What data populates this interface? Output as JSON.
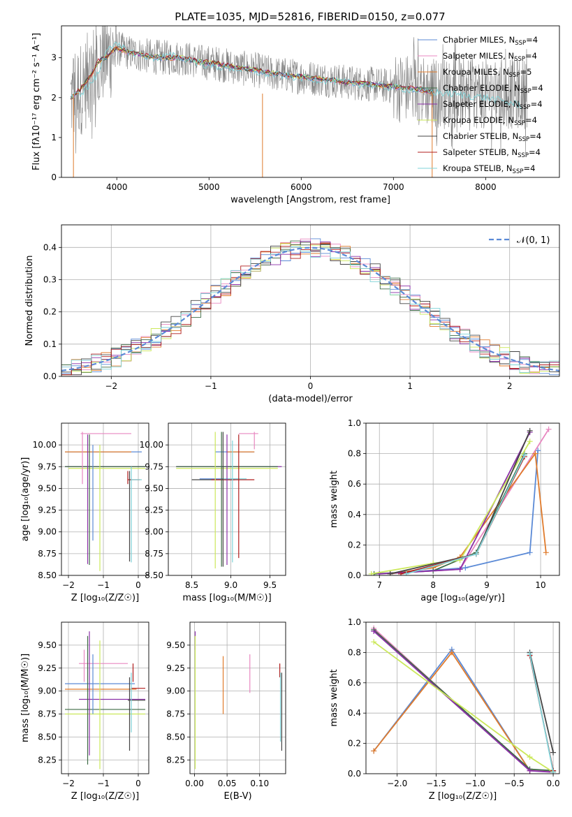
{
  "figure": {
    "title": "PLATE=1035, MJD=52816, FIBERID=0150, z=0.077"
  },
  "colors": {
    "chabrier_miles": "#5b8ad6",
    "salpeter_miles": "#e887c0",
    "kroupa_miles": "#e07b2c",
    "chabrier_elodie": "#3d6b45",
    "salpeter_elodie": "#8b2fa8",
    "kroupa_elodie": "#cbe85a",
    "chabrier_stelib": "#444444",
    "salpeter_stelib": "#b01c1c",
    "kroupa_stelib": "#7fd3d8",
    "data_grey": "#7f7f7f"
  },
  "chart_data": [
    {
      "id": "spectrum",
      "type": "line",
      "xlabel": "wavelength [Angstrom, rest frame]",
      "ylabel": "Flux [fλ10⁻¹⁷ erg cm⁻² s⁻¹ A⁻¹]",
      "xlim": [
        3400,
        8800
      ],
      "ylim": [
        0,
        3.8
      ],
      "xticks": [
        4000,
        5000,
        6000,
        7000,
        8000
      ],
      "yticks": [
        0,
        1,
        2,
        3
      ],
      "grid": false,
      "legend_position": "top-right",
      "legend": [
        {
          "label": "Chabrier MILES, N",
          "sub": "SSP",
          "suffix": "=4",
          "color": "chabrier_miles"
        },
        {
          "label": "Salpeter MILES, N",
          "sub": "SSP",
          "suffix": "=4",
          "color": "salpeter_miles"
        },
        {
          "label": "Kroupa MILES, N",
          "sub": "SSP",
          "suffix": "=5",
          "color": "kroupa_miles"
        },
        {
          "label": "Chabrier ELODIE, N",
          "sub": "SSP",
          "suffix": "=4",
          "color": "chabrier_elodie"
        },
        {
          "label": "Salpeter ELODIE, N",
          "sub": "SSP",
          "suffix": "=4",
          "color": "salpeter_elodie"
        },
        {
          "label": "Kroupa ELODIE, N",
          "sub": "SSP",
          "suffix": "=4",
          "color": "kroupa_elodie"
        },
        {
          "label": "Chabrier STELIB, N",
          "sub": "SSP",
          "suffix": "=4",
          "color": "chabrier_stelib"
        },
        {
          "label": "Salpeter STELIB, N",
          "sub": "SSP",
          "suffix": "=4",
          "color": "salpeter_stelib"
        },
        {
          "label": "Kroupa STELIB, N",
          "sub": "SSP",
          "suffix": "=4",
          "color": "kroupa_stelib"
        }
      ],
      "model_curve": {
        "x": [
          3500,
          3600,
          3700,
          3800,
          3900,
          4000,
          4100,
          4300,
          4500,
          4700,
          4900,
          5100,
          5300,
          5500,
          5700,
          5900,
          6100,
          6300,
          6500,
          6700,
          6900,
          7100,
          7300,
          7500
        ],
        "y": [
          2.0,
          2.2,
          2.5,
          2.9,
          3.05,
          3.25,
          3.15,
          3.05,
          3.0,
          3.0,
          2.9,
          2.85,
          2.75,
          2.7,
          2.6,
          2.55,
          2.5,
          2.45,
          2.38,
          2.35,
          2.3,
          2.25,
          2.2,
          2.1
        ]
      },
      "kroupa_stelib_curve": {
        "x": [
          3500,
          3600,
          3700,
          3800,
          3900,
          4000,
          4200,
          4400,
          4600,
          4800,
          5000,
          5200,
          5400,
          5600,
          5800,
          6000,
          6200,
          6400,
          6600,
          6800,
          7000,
          7200,
          7400,
          7600,
          7800,
          8000,
          8200,
          8400
        ],
        "y": [
          2.0,
          2.1,
          2.3,
          2.6,
          3.3,
          3.3,
          3.1,
          3.0,
          3.05,
          2.95,
          2.8,
          2.75,
          2.7,
          2.6,
          2.55,
          2.5,
          2.45,
          2.4,
          2.35,
          2.3,
          2.25,
          2.2,
          2.15,
          2.1,
          2.05,
          2.0,
          1.9,
          1.8
        ]
      },
      "data_x_range": [
        3500,
        8450
      ]
    },
    {
      "id": "residuals",
      "type": "step",
      "xlabel": "(data-model)/error",
      "ylabel": "Normed distribution",
      "xlim": [
        -2.5,
        2.5
      ],
      "ylim": [
        0,
        0.47
      ],
      "xticks": [
        -2,
        -1,
        0,
        1,
        2
      ],
      "yticks": [
        0.0,
        0.1,
        0.2,
        0.3,
        0.4
      ],
      "grid": true,
      "legend_position": "top-right",
      "legend": [
        {
          "label": "𝒩(0, 1)",
          "color": "#5b8ad6",
          "style": "dashed"
        }
      ],
      "normal": {
        "mean": 0,
        "sigma": 1
      }
    },
    {
      "id": "age_vs_Z",
      "type": "errorbar",
      "xlabel": "Z [log₁₀(Z/Z☉)]",
      "ylabel": "age  [log₁₀(age/yr)]",
      "xlim": [
        -2.2,
        0.3
      ],
      "ylim": [
        8.5,
        10.25
      ],
      "xticks": [
        -2,
        -1,
        0
      ],
      "yticks": [
        8.5,
        8.75,
        9.0,
        9.25,
        9.5,
        9.75,
        10.0
      ],
      "grid": true,
      "hbars": [
        {
          "y": 10.13,
          "x0": -1.65,
          "x1": -0.2,
          "c": "salpeter_miles"
        },
        {
          "y": 9.92,
          "x0": -2.1,
          "x1": 0.1,
          "c": "chabrier_miles"
        },
        {
          "y": 9.92,
          "x0": -2.1,
          "x1": -0.2,
          "c": "kroupa_miles"
        },
        {
          "y": 9.75,
          "x0": -2.1,
          "x1": 0.2,
          "c": "salpeter_elodie"
        },
        {
          "y": 9.75,
          "x0": -2.1,
          "x1": 0.2,
          "c": "chabrier_elodie"
        },
        {
          "y": 9.73,
          "x0": -2.0,
          "x1": 0.2,
          "c": "kroupa_elodie"
        },
        {
          "y": 9.6,
          "x0": -0.3,
          "x1": 0.05,
          "c": "salpeter_stelib"
        },
        {
          "y": 9.6,
          "x0": -0.2,
          "x1": 0.1,
          "c": "kroupa_stelib"
        }
      ],
      "vbars": [
        {
          "x": -1.6,
          "y0": 9.55,
          "y1": 10.15,
          "c": "salpeter_miles"
        },
        {
          "x": -1.45,
          "y0": 8.63,
          "y1": 10.12,
          "c": "salpeter_elodie"
        },
        {
          "x": -1.4,
          "y0": 8.62,
          "y1": 10.12,
          "c": "chabrier_elodie"
        },
        {
          "x": -1.1,
          "y0": 8.55,
          "y1": 10.0,
          "c": "kroupa_elodie"
        },
        {
          "x": -1.3,
          "y0": 8.9,
          "y1": 10.0,
          "c": "chabrier_miles"
        },
        {
          "x": -0.25,
          "y0": 8.66,
          "y1": 9.7,
          "c": "chabrier_stelib"
        },
        {
          "x": -0.2,
          "y0": 8.65,
          "y1": 9.75,
          "c": "kroupa_stelib"
        },
        {
          "x": -0.3,
          "y0": 9.55,
          "y1": 9.7,
          "c": "salpeter_stelib"
        }
      ]
    },
    {
      "id": "age_vs_mass",
      "type": "errorbar",
      "xlabel": "mass [log₁₀(M/M☉)]",
      "ylabel": "",
      "xlim": [
        8.2,
        9.7
      ],
      "ylim": [
        8.5,
        10.25
      ],
      "xticks": [
        8.5,
        9.0,
        9.5
      ],
      "yticks": [
        8.5,
        8.75,
        9.0,
        9.25,
        9.5,
        9.75,
        10.0
      ],
      "grid": true,
      "hbars": [
        {
          "y": 10.13,
          "x0": 9.1,
          "x1": 9.35,
          "c": "salpeter_miles"
        },
        {
          "y": 9.92,
          "x0": 8.8,
          "x1": 9.3,
          "c": "chabrier_miles"
        },
        {
          "y": 9.92,
          "x0": 8.95,
          "x1": 9.3,
          "c": "kroupa_miles"
        },
        {
          "y": 9.75,
          "x0": 8.3,
          "x1": 9.65,
          "c": "salpeter_elodie"
        },
        {
          "y": 9.75,
          "x0": 8.3,
          "x1": 9.6,
          "c": "chabrier_elodie"
        },
        {
          "y": 9.73,
          "x0": 8.3,
          "x1": 9.6,
          "c": "kroupa_elodie"
        },
        {
          "y": 9.61,
          "x0": 8.6,
          "x1": 9.1,
          "c": "chabrier_miles"
        },
        {
          "y": 9.6,
          "x0": 8.5,
          "x1": 9.05,
          "c": "chabrier_stelib"
        },
        {
          "y": 9.6,
          "x0": 8.75,
          "x1": 9.3,
          "c": "salpeter_stelib"
        },
        {
          "y": 9.61,
          "x0": 8.9,
          "x1": 9.2,
          "c": "kroupa_stelib"
        }
      ],
      "vbars": [
        {
          "x": 8.8,
          "y0": 8.58,
          "y1": 10.15,
          "c": "kroupa_elodie"
        },
        {
          "x": 8.88,
          "y0": 8.6,
          "y1": 10.15,
          "c": "chabrier_elodie"
        },
        {
          "x": 8.9,
          "y0": 8.6,
          "y1": 10.15,
          "c": "chabrier_stelib"
        },
        {
          "x": 8.95,
          "y0": 8.62,
          "y1": 10.12,
          "c": "salpeter_elodie"
        },
        {
          "x": 9.02,
          "y0": 8.65,
          "y1": 10.05,
          "c": "kroupa_stelib"
        },
        {
          "x": 9.1,
          "y0": 8.7,
          "y1": 10.12,
          "c": "salpeter_stelib"
        },
        {
          "x": 9.3,
          "y0": 9.95,
          "y1": 10.15,
          "c": "salpeter_miles"
        }
      ]
    },
    {
      "id": "weight_vs_age",
      "type": "line",
      "xlabel": "age  [log₁₀(age/yr)]",
      "ylabel": "mass weight",
      "xlim": [
        6.75,
        10.35
      ],
      "ylim": [
        0,
        1.0
      ],
      "xticks": [
        7,
        8,
        9,
        10
      ],
      "yticks": [
        0.0,
        0.2,
        0.4,
        0.6,
        0.8,
        1.0
      ],
      "grid": true,
      "series": [
        {
          "c": "chabrier_miles",
          "x": [
            7.5,
            8.6,
            9.8,
            9.95
          ],
          "y": [
            0.02,
            0.05,
            0.15,
            0.82
          ]
        },
        {
          "c": "salpeter_miles",
          "x": [
            7.5,
            8.5,
            10.15
          ],
          "y": [
            0.02,
            0.04,
            0.96
          ]
        },
        {
          "c": "kroupa_miles",
          "x": [
            7.2,
            8.0,
            8.5,
            9.9,
            10.1
          ],
          "y": [
            0.01,
            0.05,
            0.12,
            0.8,
            0.15
          ]
        },
        {
          "c": "chabrier_elodie",
          "x": [
            6.9,
            8.0,
            8.8,
            9.7
          ],
          "y": [
            0.01,
            0.03,
            0.15,
            0.8
          ]
        },
        {
          "c": "salpeter_elodie",
          "x": [
            7.0,
            8.5,
            9.8
          ],
          "y": [
            0.01,
            0.04,
            0.94
          ]
        },
        {
          "c": "kroupa_elodie",
          "x": [
            6.85,
            8.0,
            8.5,
            9.8
          ],
          "y": [
            0.01,
            0.08,
            0.1,
            0.88
          ]
        },
        {
          "c": "chabrier_stelib",
          "x": [
            7.2,
            8.8,
            9.8
          ],
          "y": [
            0.01,
            0.14,
            0.95
          ]
        },
        {
          "c": "salpeter_stelib",
          "x": [
            7.4,
            8.8,
            9.7
          ],
          "y": [
            0.01,
            0.14,
            0.78
          ]
        },
        {
          "c": "kroupa_stelib",
          "x": [
            7.5,
            8.8,
            9.7
          ],
          "y": [
            0.01,
            0.14,
            0.79
          ]
        }
      ]
    },
    {
      "id": "mass_vs_Z",
      "type": "errorbar",
      "xlabel": "Z [log₁₀(Z/Z☉)]",
      "ylabel": "mass [log₁₀(M/M☉)]",
      "xlim": [
        -2.2,
        0.3
      ],
      "ylim": [
        8.1,
        9.75
      ],
      "xticks": [
        -2,
        -1,
        0
      ],
      "yticks": [
        8.25,
        8.5,
        8.75,
        9.0,
        9.25,
        9.5
      ],
      "grid": true,
      "hbars": [
        {
          "y": 9.3,
          "x0": -1.7,
          "x1": -0.3,
          "c": "salpeter_miles"
        },
        {
          "y": 9.08,
          "x0": -2.1,
          "x1": -0.1,
          "c": "chabrier_miles"
        },
        {
          "y": 9.02,
          "x0": -2.1,
          "x1": -0.05,
          "c": "kroupa_miles"
        },
        {
          "y": 9.03,
          "x0": -0.2,
          "x1": 0.2,
          "c": "salpeter_stelib"
        },
        {
          "y": 8.91,
          "x0": -1.7,
          "x1": 0.2,
          "c": "salpeter_elodie"
        },
        {
          "y": 8.9,
          "x0": -0.3,
          "x1": 0.2,
          "c": "chabrier_stelib"
        },
        {
          "y": 8.8,
          "x0": -2.1,
          "x1": 0.2,
          "c": "chabrier_elodie"
        },
        {
          "y": 8.75,
          "x0": -2.1,
          "x1": 0.2,
          "c": "kroupa_elodie"
        }
      ],
      "vbars": [
        {
          "x": -1.45,
          "y0": 8.2,
          "y1": 9.6,
          "c": "chabrier_elodie"
        },
        {
          "x": -1.4,
          "y0": 8.3,
          "y1": 9.65,
          "c": "salpeter_elodie"
        },
        {
          "x": -1.3,
          "y0": 8.75,
          "y1": 9.4,
          "c": "chabrier_miles"
        },
        {
          "x": -1.55,
          "y0": 9.1,
          "y1": 9.45,
          "c": "salpeter_miles"
        },
        {
          "x": -1.1,
          "y0": 8.15,
          "y1": 9.55,
          "c": "kroupa_elodie"
        },
        {
          "x": -0.25,
          "y0": 8.35,
          "y1": 9.15,
          "c": "chabrier_stelib"
        },
        {
          "x": -0.2,
          "y0": 8.55,
          "y1": 9.2,
          "c": "kroupa_stelib"
        },
        {
          "x": -0.15,
          "y0": 9.1,
          "y1": 9.3,
          "c": "salpeter_stelib"
        }
      ]
    },
    {
      "id": "mass_vs_ebv",
      "type": "errorbar",
      "xlabel": "E(B-V)",
      "ylabel": "",
      "xlim": [
        -0.007,
        0.14
      ],
      "ylim": [
        8.1,
        9.75
      ],
      "xticks": [
        0.0,
        0.05,
        0.1
      ],
      "tick_labels": [
        "0.00",
        "0.05",
        "0.10"
      ],
      "yticks": [
        8.25,
        8.5,
        8.75,
        9.0,
        9.25,
        9.5
      ],
      "grid": true,
      "hbars": [],
      "vbars": [
        {
          "x": 0.001,
          "y0": 9.45,
          "y1": 9.65,
          "c": "salpeter_elodie"
        },
        {
          "x": 0.001,
          "y0": 8.15,
          "y1": 9.6,
          "c": "kroupa_elodie"
        },
        {
          "x": 0.044,
          "y0": 8.75,
          "y1": 9.38,
          "c": "kroupa_miles"
        },
        {
          "x": 0.085,
          "y0": 8.98,
          "y1": 9.4,
          "c": "salpeter_miles"
        },
        {
          "x": 0.131,
          "y0": 9.15,
          "y1": 9.3,
          "c": "salpeter_stelib"
        },
        {
          "x": 0.132,
          "y0": 8.45,
          "y1": 9.2,
          "c": "kroupa_stelib"
        },
        {
          "x": 0.134,
          "y0": 8.35,
          "y1": 9.2,
          "c": "chabrier_stelib"
        }
      ]
    },
    {
      "id": "weight_vs_Z",
      "type": "line",
      "xlabel": "Z [log₁₀(Z/Z☉)]",
      "ylabel": "mass weight",
      "xlim": [
        -2.4,
        0.08
      ],
      "ylim": [
        0,
        1.0
      ],
      "xticks": [
        -2.0,
        -1.5,
        -1.0,
        -0.5,
        0.0
      ],
      "tick_labels": [
        "−2.0",
        "−1.5",
        "−1.0",
        "−0.5",
        "0.0"
      ],
      "yticks": [
        0.0,
        0.2,
        0.4,
        0.6,
        0.8,
        1.0
      ],
      "grid": true,
      "series": [
        {
          "c": "chabrier_miles",
          "x": [
            -2.3,
            -1.3,
            -0.3,
            0.0
          ],
          "y": [
            0.15,
            0.82,
            0.02,
            0.02
          ]
        },
        {
          "c": "kroupa_miles",
          "x": [
            -2.3,
            -1.3,
            -0.3,
            0.0
          ],
          "y": [
            0.15,
            0.8,
            0.02,
            0.02
          ]
        },
        {
          "c": "salpeter_miles",
          "x": [
            -2.3,
            -0.3,
            0.0
          ],
          "y": [
            0.96,
            0.02,
            0.02
          ]
        },
        {
          "c": "chabrier_elodie",
          "x": [
            -2.3,
            -0.3,
            0.0
          ],
          "y": [
            0.95,
            0.03,
            0.02
          ]
        },
        {
          "c": "salpeter_elodie",
          "x": [
            -2.3,
            -0.3,
            0.0
          ],
          "y": [
            0.94,
            0.02,
            0.01
          ]
        },
        {
          "c": "kroupa_elodie",
          "x": [
            -2.3,
            -0.3,
            0.0
          ],
          "y": [
            0.87,
            0.11,
            0.01
          ]
        },
        {
          "c": "chabrier_stelib",
          "x": [
            -0.3,
            0.0
          ],
          "y": [
            0.8,
            0.14
          ]
        },
        {
          "c": "salpeter_stelib",
          "x": [
            -0.3,
            0.0
          ],
          "y": [
            0.78,
            0.02
          ]
        },
        {
          "c": "kroupa_stelib",
          "x": [
            -0.3,
            0.0
          ],
          "y": [
            0.79,
            0.01
          ]
        }
      ]
    }
  ]
}
